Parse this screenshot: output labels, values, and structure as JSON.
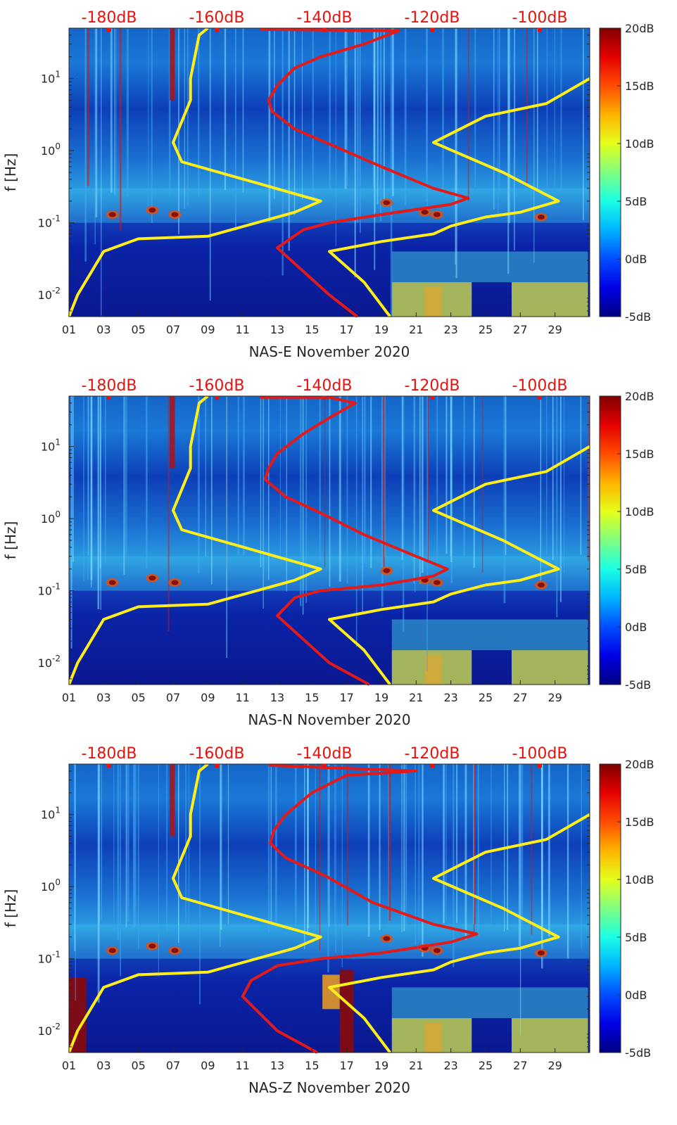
{
  "chart_data": [
    {
      "type": "heatmap",
      "xlabel": "NAS-E November 2020",
      "ylabel": "f [Hz]",
      "x_ticks": [
        "01",
        "03",
        "05",
        "07",
        "09",
        "11",
        "13",
        "15",
        "17",
        "19",
        "21",
        "23",
        "25",
        "27",
        "29"
      ],
      "y_ticks": [
        {
          "base": "10",
          "exp": "1",
          "value": 10
        },
        {
          "base": "10",
          "exp": "0",
          "value": 1
        },
        {
          "base": "10",
          "exp": "-1",
          "value": 0.1
        },
        {
          "base": "10",
          "exp": "-2",
          "value": 0.01
        }
      ],
      "y_scale": "log",
      "ylim": [
        0.005,
        50
      ],
      "xlim": [
        1,
        31
      ],
      "top_axis_labels": [
        "-180dB",
        "-160dB",
        "-140dB",
        "-120dB",
        "-100dB"
      ],
      "colorbar": {
        "ticks": [
          "20dB",
          "15dB",
          "10dB",
          "5dB",
          "0dB",
          "-5dB"
        ],
        "range": [
          -5,
          20
        ],
        "colormap": "jet"
      },
      "series": [
        {
          "color": "#ffee1a",
          "points": [
            [
              1.0,
              0.005
            ],
            [
              1.5,
              0.01
            ],
            [
              3,
              0.04
            ],
            [
              5,
              0.06
            ],
            [
              9,
              0.065
            ],
            [
              14,
              0.14
            ],
            [
              15.5,
              0.2
            ],
            [
              7.5,
              0.7
            ],
            [
              7,
              1.3
            ],
            [
              8,
              5
            ],
            [
              8,
              10
            ],
            [
              8.5,
              40
            ],
            [
              9,
              50
            ]
          ]
        },
        {
          "color": "#e21a1a",
          "points": [
            [
              17.6,
              0.005
            ],
            [
              16,
              0.01
            ],
            [
              13,
              0.045
            ],
            [
              14.5,
              0.08
            ],
            [
              16,
              0.1
            ],
            [
              19,
              0.13
            ],
            [
              23,
              0.18
            ],
            [
              24,
              0.22
            ],
            [
              22,
              0.3
            ],
            [
              19,
              0.6
            ],
            [
              16.5,
              1.1
            ],
            [
              14,
              2
            ],
            [
              12.7,
              3.5
            ],
            [
              12.5,
              5
            ],
            [
              13,
              8
            ],
            [
              14,
              14
            ],
            [
              15.5,
              20
            ],
            [
              18,
              30
            ],
            [
              20,
              46
            ],
            [
              12,
              48
            ]
          ]
        },
        {
          "color": "#ffee1a",
          "points": [
            [
              19.5,
              0.005
            ],
            [
              18,
              0.015
            ],
            [
              16,
              0.04
            ],
            [
              19,
              0.055
            ],
            [
              22,
              0.07
            ],
            [
              23,
              0.09
            ],
            [
              25,
              0.12
            ],
            [
              27,
              0.14
            ],
            [
              29.2,
              0.2
            ],
            [
              26,
              0.5
            ],
            [
              22,
              1.3
            ],
            [
              25,
              3
            ],
            [
              28.5,
              4.5
            ],
            [
              31,
              10
            ]
          ]
        }
      ]
    },
    {
      "type": "heatmap",
      "xlabel": "NAS-N November 2020",
      "ylabel": "f [Hz]",
      "x_ticks": [
        "01",
        "03",
        "05",
        "07",
        "09",
        "11",
        "13",
        "15",
        "17",
        "19",
        "21",
        "23",
        "25",
        "27",
        "29"
      ],
      "y_ticks": [
        {
          "base": "10",
          "exp": "1",
          "value": 10
        },
        {
          "base": "10",
          "exp": "0",
          "value": 1
        },
        {
          "base": "10",
          "exp": "-1",
          "value": 0.1
        },
        {
          "base": "10",
          "exp": "-2",
          "value": 0.01
        }
      ],
      "y_scale": "log",
      "ylim": [
        0.005,
        50
      ],
      "xlim": [
        1,
        31
      ],
      "top_axis_labels": [
        "-180dB",
        "-160dB",
        "-140dB",
        "-120dB",
        "-100dB"
      ],
      "colorbar": {
        "ticks": [
          "20dB",
          "15dB",
          "10dB",
          "5dB",
          "0dB",
          "-5dB"
        ],
        "range": [
          -5,
          20
        ],
        "colormap": "jet"
      },
      "series": [
        {
          "color": "#ffee1a",
          "points": [
            [
              1.0,
              0.005
            ],
            [
              1.5,
              0.01
            ],
            [
              3,
              0.04
            ],
            [
              5,
              0.06
            ],
            [
              9,
              0.065
            ],
            [
              14,
              0.14
            ],
            [
              15.5,
              0.2
            ],
            [
              7.5,
              0.7
            ],
            [
              7,
              1.3
            ],
            [
              8,
              5
            ],
            [
              8,
              10
            ],
            [
              8.5,
              40
            ],
            [
              9,
              50
            ]
          ]
        },
        {
          "color": "#e21a1a",
          "points": [
            [
              18.3,
              0.005
            ],
            [
              16,
              0.01
            ],
            [
              13,
              0.045
            ],
            [
              14,
              0.08
            ],
            [
              15.5,
              0.1
            ],
            [
              19,
              0.12
            ],
            [
              22,
              0.16
            ],
            [
              22.8,
              0.2
            ],
            [
              21,
              0.3
            ],
            [
              18,
              0.6
            ],
            [
              15.5,
              1.2
            ],
            [
              13.5,
              2
            ],
            [
              12.3,
              3.5
            ],
            [
              12.5,
              5
            ],
            [
              13,
              8
            ],
            [
              14.5,
              15
            ],
            [
              16,
              25
            ],
            [
              17.5,
              40
            ],
            [
              16,
              48
            ],
            [
              12,
              48
            ]
          ]
        },
        {
          "color": "#ffee1a",
          "points": [
            [
              19.5,
              0.005
            ],
            [
              18,
              0.015
            ],
            [
              16,
              0.04
            ],
            [
              19,
              0.055
            ],
            [
              22,
              0.07
            ],
            [
              23,
              0.09
            ],
            [
              25,
              0.12
            ],
            [
              27,
              0.14
            ],
            [
              29.2,
              0.2
            ],
            [
              26,
              0.5
            ],
            [
              22,
              1.3
            ],
            [
              25,
              3
            ],
            [
              28.5,
              4.5
            ],
            [
              31,
              10
            ]
          ]
        }
      ]
    },
    {
      "type": "heatmap",
      "xlabel": "NAS-Z November 2020",
      "ylabel": "f [Hz]",
      "x_ticks": [
        "01",
        "03",
        "05",
        "07",
        "09",
        "11",
        "13",
        "15",
        "17",
        "19",
        "21",
        "23",
        "25",
        "27",
        "29"
      ],
      "y_ticks": [
        {
          "base": "10",
          "exp": "1",
          "value": 10
        },
        {
          "base": "10",
          "exp": "0",
          "value": 1
        },
        {
          "base": "10",
          "exp": "-1",
          "value": 0.1
        },
        {
          "base": "10",
          "exp": "-2",
          "value": 0.01
        }
      ],
      "y_scale": "log",
      "ylim": [
        0.005,
        50
      ],
      "xlim": [
        1,
        31
      ],
      "top_axis_labels": [
        "-180dB",
        "-160dB",
        "-140dB",
        "-120dB",
        "-100dB"
      ],
      "colorbar": {
        "ticks": [
          "20dB",
          "15dB",
          "10dB",
          "5dB",
          "0dB",
          "-5dB"
        ],
        "range": [
          -5,
          20
        ],
        "colormap": "jet"
      },
      "series": [
        {
          "color": "#ffee1a",
          "points": [
            [
              1.0,
              0.005
            ],
            [
              1.5,
              0.01
            ],
            [
              3,
              0.04
            ],
            [
              5,
              0.06
            ],
            [
              9,
              0.065
            ],
            [
              14,
              0.14
            ],
            [
              15.5,
              0.2
            ],
            [
              7.5,
              0.7
            ],
            [
              7,
              1.3
            ],
            [
              8,
              5
            ],
            [
              8,
              10
            ],
            [
              8.5,
              40
            ],
            [
              9,
              50
            ]
          ]
        },
        {
          "color": "#e21a1a",
          "points": [
            [
              15.3,
              0.005
            ],
            [
              13,
              0.01
            ],
            [
              11,
              0.03
            ],
            [
              11.5,
              0.05
            ],
            [
              13,
              0.08
            ],
            [
              15.5,
              0.1
            ],
            [
              19,
              0.12
            ],
            [
              23,
              0.17
            ],
            [
              24.5,
              0.22
            ],
            [
              22,
              0.3
            ],
            [
              18.5,
              0.6
            ],
            [
              15.8,
              1.4
            ],
            [
              13.5,
              2.5
            ],
            [
              12.6,
              4
            ],
            [
              12.8,
              6
            ],
            [
              13.5,
              10
            ],
            [
              15,
              20
            ],
            [
              17,
              35
            ],
            [
              21,
              40
            ],
            [
              12.5,
              48
            ]
          ]
        },
        {
          "color": "#ffee1a",
          "points": [
            [
              19.5,
              0.005
            ],
            [
              18,
              0.015
            ],
            [
              16,
              0.04
            ],
            [
              19,
              0.055
            ],
            [
              22,
              0.07
            ],
            [
              23,
              0.09
            ],
            [
              25,
              0.12
            ],
            [
              27,
              0.14
            ],
            [
              29.2,
              0.2
            ],
            [
              26,
              0.5
            ],
            [
              22,
              1.3
            ],
            [
              25,
              3
            ],
            [
              28.5,
              4.5
            ],
            [
              31,
              10
            ]
          ]
        }
      ]
    }
  ]
}
